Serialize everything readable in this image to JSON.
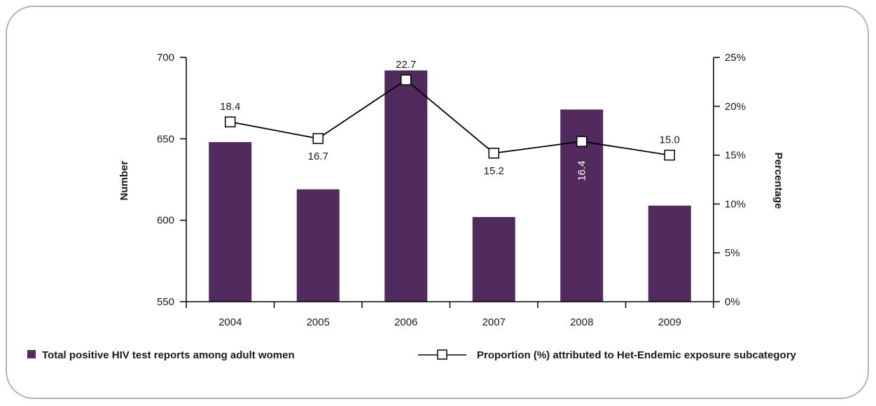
{
  "chart_data": {
    "type": "bar",
    "categories": [
      "2004",
      "2005",
      "2006",
      "2007",
      "2008",
      "2009"
    ],
    "series": [
      {
        "name": "Total positive HIV test reports among adult women",
        "type": "bar",
        "axis": "left",
        "values": [
          648,
          619,
          692,
          602,
          668,
          609
        ]
      },
      {
        "name": "Proportion (%) attributed to Het-Endemic exposure subcategory",
        "type": "line",
        "axis": "right",
        "values": [
          18.4,
          16.7,
          22.7,
          15.2,
          16.4,
          15.0
        ],
        "labels": [
          "18.4",
          "16.7",
          "22.7",
          "15.2",
          "16.4",
          "15.0"
        ]
      }
    ],
    "ylabel": "Number",
    "y2label": "Percentage",
    "ylim": [
      550,
      700
    ],
    "y2lim": [
      0,
      25
    ],
    "yticks": [
      "550",
      "600",
      "650",
      "700"
    ],
    "y2ticks": [
      "0%",
      "5%",
      "10%",
      "15%",
      "20%",
      "25%"
    ],
    "legend_position": "bottom",
    "grid": false,
    "colors": {
      "bar": "#512a5e",
      "line": "#000000",
      "marker_fill": "#ffffff"
    }
  }
}
